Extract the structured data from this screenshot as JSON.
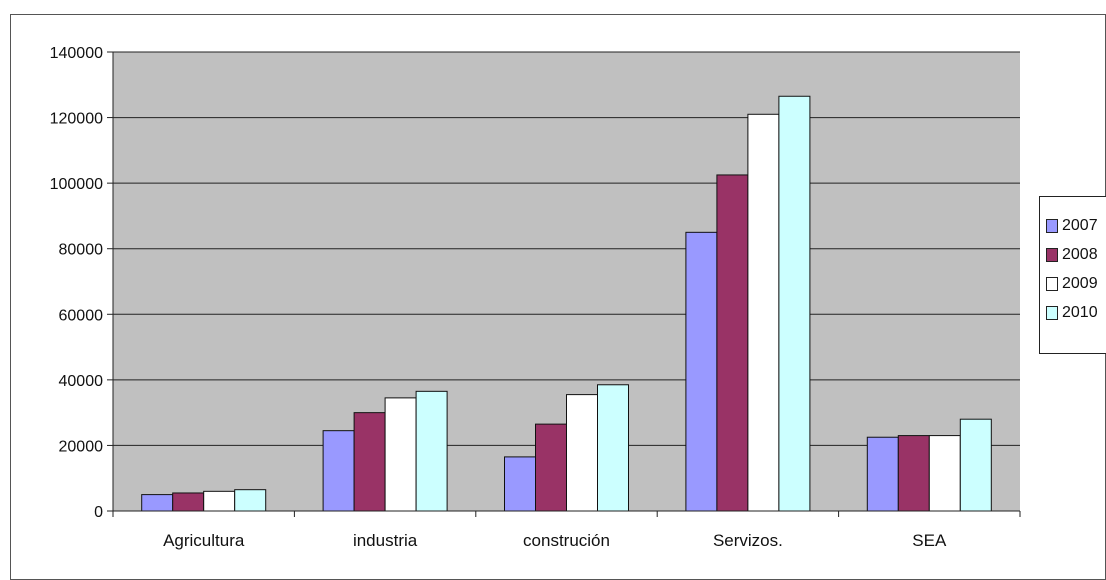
{
  "chart_data": {
    "type": "bar",
    "categories": [
      "Agricultura",
      "industria",
      "construción",
      "Servizos.",
      "SEA"
    ],
    "series": [
      {
        "name": "2007",
        "color": "#9999ff",
        "values": [
          5000,
          24500,
          16500,
          85000,
          22500
        ]
      },
      {
        "name": "2008",
        "color": "#993366",
        "values": [
          5500,
          30000,
          26500,
          102500,
          23000
        ]
      },
      {
        "name": "2009",
        "color": "#ffffff",
        "values": [
          6000,
          34500,
          35500,
          121000,
          23000
        ]
      },
      {
        "name": "2010",
        "color": "#ccffff",
        "values": [
          6500,
          36500,
          38500,
          126500,
          28000
        ]
      }
    ],
    "legend_labels": [
      "2007",
      "2008",
      "2009",
      "2010"
    ],
    "yticks": [
      "0",
      "20000",
      "40000",
      "60000",
      "80000",
      "100000",
      "120000",
      "140000"
    ],
    "ylim": [
      0,
      140000
    ],
    "grid": true,
    "legend_position": "right",
    "plot_background": "#c0c0c0"
  }
}
